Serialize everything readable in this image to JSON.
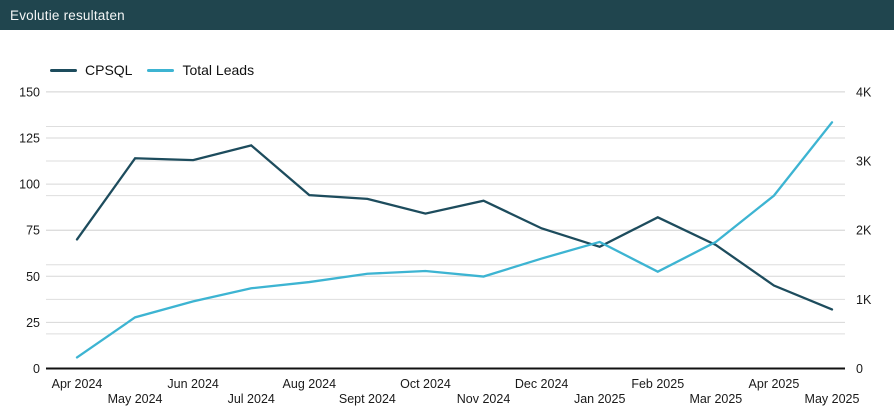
{
  "header": {
    "title": "Evolutie resultaten",
    "bg_color": "#20454e",
    "text_color": "#f4f6f6"
  },
  "legend": {
    "items": [
      "CPSQL",
      "Total Leads"
    ]
  },
  "colors": {
    "cpsql_line": "#1d4c5d",
    "total_leads_line": "#3db4d2",
    "gridline_major": "#d7d7d7",
    "gridline_minor": "#dedede",
    "axis_line": "#111111",
    "tick_text": "#1a1a1a"
  },
  "chart_data": {
    "type": "line",
    "title": "Evolutie resultaten",
    "categories": [
      "Apr 2024",
      "May 2024",
      "Jun 2024",
      "Jul 2024",
      "Aug 2024",
      "Sept 2024",
      "Oct 2024",
      "Nov 2024",
      "Dec 2024",
      "Jan 2025",
      "Feb 2025",
      "Mar 2025",
      "Apr 2025",
      "May 2025"
    ],
    "series": [
      {
        "name": "CPSQL",
        "axis": "left",
        "color": "#1d4c5d",
        "values": [
          70,
          114,
          113,
          121,
          94,
          92,
          84,
          91,
          76,
          66,
          82,
          67,
          45,
          32
        ]
      },
      {
        "name": "Total Leads",
        "axis": "right",
        "color": "#3db4d2",
        "values": [
          160,
          740,
          970,
          1160,
          1250,
          1370,
          1410,
          1330,
          1590,
          1830,
          1400,
          1830,
          2500,
          3560
        ]
      }
    ],
    "left_axis": {
      "min": 0,
      "max": 150,
      "ticks": [
        0,
        25,
        50,
        75,
        100,
        125,
        150
      ]
    },
    "right_axis": {
      "min": 0,
      "max": 4000,
      "tick_labels": [
        "0",
        "1K",
        "2K",
        "3K",
        "4K"
      ],
      "tick_values": [
        0,
        1000,
        2000,
        3000,
        4000
      ],
      "minor_grid_step": 500
    },
    "grid": true,
    "legend_position": "top-left"
  }
}
